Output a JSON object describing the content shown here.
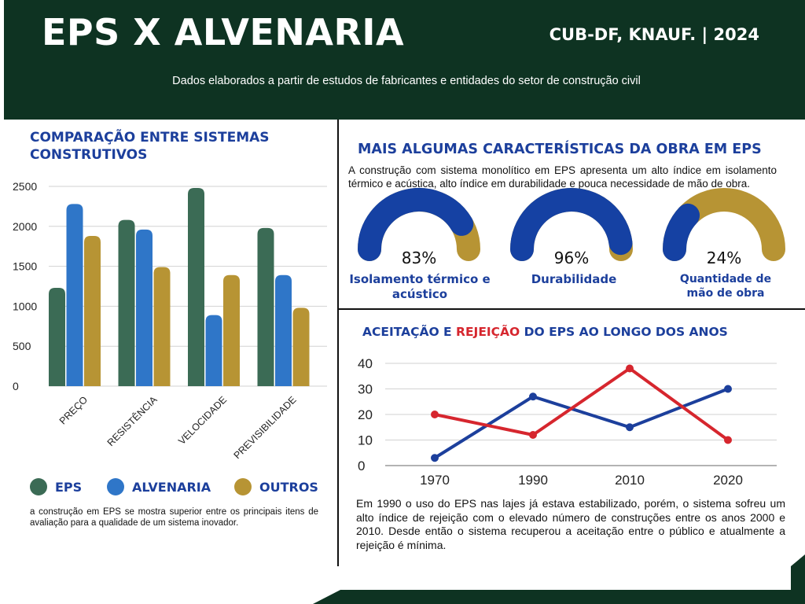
{
  "header": {
    "title": "EPS X ALVENARIA",
    "source": "CUB-DF, KNAUF. | 2024",
    "subtitle": "Dados elaborados a partir de estudos de fabricantes e entidades do setor de construção civil"
  },
  "bar_section": {
    "title": "COMPARAÇÃO ENTRE SISTEMAS CONSTRUTIVOS",
    "description": "a construção em EPS se mostra superior entre os principais itens de avaliação para a qualidade de um sistema inovador."
  },
  "gauge_section": {
    "title": "MAIS ALGUMAS CARACTERÍSTICAS DA OBRA EM EPS",
    "description": "A construção com sistema monolítico em EPS apresenta um alto índice em isolamento térmico e acústica, alto índice em durabilidade e pouca necessidade de mão de obra."
  },
  "line_section": {
    "title_part1": "ACEITAÇÃO E ",
    "title_part2": "REJEIÇÃO",
    "title_part3": " DO EPS  AO LONGO DOS ANOS",
    "description": "Em 1990 o uso do EPS nas lajes já estava estabilizado, porém, o sistema sofreu um alto índice de rejeição com o elevado número de construções entre os anos 2000 e 2010. Desde então o sistema recuperou a aceitação entre o público e atualmente a rejeição é mínima."
  },
  "colors": {
    "header_bg": "#0e3322",
    "eps": "#3b6b55",
    "alvenaria": "#2f76c8",
    "outros": "#b79434",
    "gauge_blue": "#1541a3",
    "gauge_gold": "#b79434",
    "accept_line": "#1c3f9c",
    "reject_line": "#d6262e"
  },
  "chart_data": [
    {
      "type": "bar",
      "categories": [
        "PREÇO",
        "RESISTÊNCIA",
        "VELOCIDADE",
        "PREVISIBILIDADE"
      ],
      "series": [
        {
          "name": "EPS",
          "values": [
            1230,
            2080,
            2480,
            1980
          ]
        },
        {
          "name": "ALVENARIA",
          "values": [
            2280,
            1960,
            890,
            1390
          ]
        },
        {
          "name": "OUTROS",
          "values": [
            1880,
            1490,
            1390,
            980
          ]
        }
      ],
      "yticks": [
        "2500",
        "2000",
        "1500",
        "1000",
        "500",
        "0"
      ],
      "ylim": [
        0,
        2500
      ],
      "grid": true,
      "legend": "bottom"
    },
    {
      "type": "gauge",
      "items": [
        {
          "value": 83,
          "value_label": "83%",
          "label": "Isolamento térmico e acústico"
        },
        {
          "value": 96,
          "value_label": "96%",
          "label": "Durabilidade"
        },
        {
          "value": 24,
          "value_label": "24%",
          "label": "Quantidade de mão de obra"
        }
      ]
    },
    {
      "type": "line",
      "x": [
        "1970",
        "1990",
        "2010",
        "2020"
      ],
      "series": [
        {
          "values": [
            3,
            27,
            15,
            30
          ]
        },
        {
          "values": [
            20,
            12,
            38,
            10
          ]
        }
      ],
      "yticks": [
        "40",
        "30",
        "20",
        "10",
        "0"
      ],
      "ylim": [
        0,
        40
      ],
      "grid": true
    }
  ]
}
